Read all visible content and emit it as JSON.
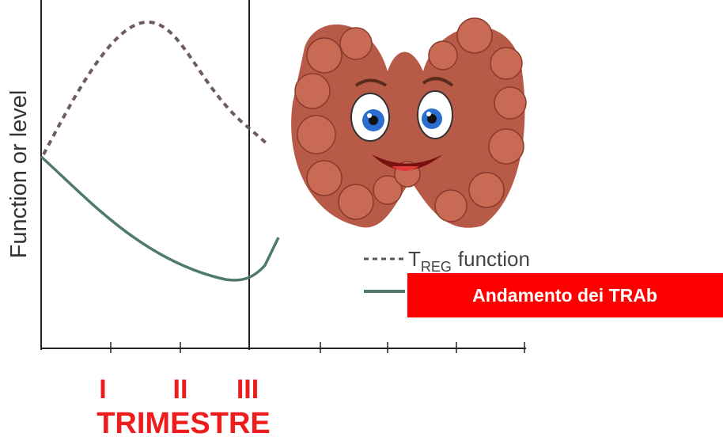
{
  "y_axis_label": "Function or level",
  "legend": [
    {
      "symbol": "T",
      "subscript": "REG",
      "text": "function"
    }
  ],
  "overlay_label": "Andamento dei TRAb",
  "trimesters": [
    "I",
    "II",
    "III"
  ],
  "x_axis_label": "TRIMESTRE"
}
